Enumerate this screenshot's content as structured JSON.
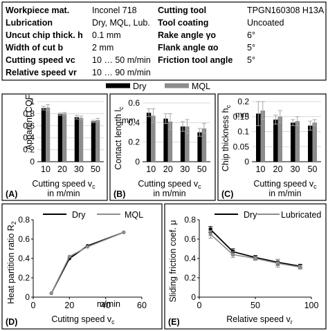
{
  "params_table": {
    "rows": [
      {
        "l1": "Workpiece mat.",
        "v1": "Inconel 718",
        "l2": "Cutting tool",
        "v2": "TPGN160308 H13A"
      },
      {
        "l1": "Lubrication",
        "v1": "Dry, MQL, Lub.",
        "l2": "Tool coating",
        "v2": "Uncoated"
      },
      {
        "l1": "Uncut chip thick. h",
        "v1": "0.1 mm",
        "l2": "Rake angle γo",
        "v2": "6°"
      },
      {
        "l1": "Width of cut b",
        "v1": "2 mm",
        "l2": "Flank angle αo",
        "v2": "5°"
      },
      {
        "l1": "Cutting speed vc",
        "v1": "10 … 50 m/min",
        "l2": "Friction tool angle",
        "v2": "5°"
      },
      {
        "l1": "Relative speed vr",
        "v1": "10 … 90 m/min",
        "l2": "",
        "v2": ""
      }
    ]
  },
  "colors": {
    "dry": "#000000",
    "mql": "#8c8c8c",
    "lubricated": "#8c8c8c",
    "frame": "#000000",
    "grid": "#d9d9d9"
  },
  "chart_data": [
    {
      "panel": "(A)",
      "type": "bar",
      "categories": [
        "10",
        "20",
        "30",
        "50"
      ],
      "series": [
        {
          "name": "Dry",
          "values": [
            0.89,
            0.79,
            0.74,
            0.67
          ],
          "errors": [
            0.03,
            0.02,
            0.03,
            0.02
          ]
        },
        {
          "name": "MQL",
          "values": [
            0.9,
            0.8,
            0.73,
            0.69
          ],
          "errors": [
            0.05,
            0.02,
            0.03,
            0.03
          ]
        }
      ],
      "ylabel": "Apparent COF",
      "xlabel": "Cutting speed vc",
      "xunit": "in m/min",
      "ylim": [
        0,
        1
      ],
      "yticks": [
        "0",
        "0.2",
        "0.4",
        "0.6",
        "0.8",
        "1"
      ],
      "legend": {
        "dry": "Dry",
        "mql": "MQL"
      }
    },
    {
      "panel": "(B)",
      "type": "bar",
      "categories": [
        "10",
        "20",
        "30",
        "50"
      ],
      "series": [
        {
          "name": "Dry",
          "values": [
            0.5,
            0.44,
            0.36,
            0.3
          ],
          "errors": [
            0.04,
            0.05,
            0.05,
            0.04
          ]
        },
        {
          "name": "MQL",
          "values": [
            0.47,
            0.41,
            0.36,
            0.34
          ],
          "errors": [
            0.07,
            0.08,
            0.07,
            0.05
          ]
        }
      ],
      "ylabel": "Contact length lc",
      "yunit": "mm",
      "xlabel": "Cutting speed vc",
      "xunit": "in m/min",
      "ylim": [
        0,
        0.6
      ],
      "yticks": [
        "0",
        "0.2",
        "0.4",
        "0.6"
      ]
    },
    {
      "panel": "(C)",
      "type": "bar",
      "categories": [
        "10",
        "20",
        "30",
        "50"
      ],
      "series": [
        {
          "name": "Dry",
          "values": [
            0.16,
            0.14,
            0.13,
            0.12
          ],
          "errors": [
            0.04,
            0.015,
            0.01,
            0.015
          ]
        },
        {
          "name": "MQL",
          "values": [
            0.17,
            0.15,
            0.135,
            0.13
          ],
          "errors": [
            0.03,
            0.02,
            0.015,
            0.01
          ]
        }
      ],
      "ylabel": "Chip thickness hc",
      "yunit": "mm",
      "xlabel": "Cutting speed vc",
      "xunit": "in m/min",
      "ylim": [
        0,
        0.2
      ],
      "yticks": [
        "0",
        "0.05",
        "0.1",
        "0.15",
        "0.2"
      ]
    },
    {
      "panel": "(D)",
      "type": "line",
      "series": [
        {
          "name": "Dry",
          "x": [
            10,
            20,
            30,
            50
          ],
          "y": [
            0.04,
            0.4,
            0.53,
            0.67
          ]
        },
        {
          "name": "MQL",
          "x": [
            10,
            20,
            30,
            50
          ],
          "y": [
            0.04,
            0.42,
            0.52,
            0.67
          ]
        }
      ],
      "ylabel": "Heat partition ratio R2",
      "xlabel": "Cutitng speed vc",
      "xunit_tick": "m/min",
      "xlim": [
        0,
        60
      ],
      "ylim": [
        0,
        0.8
      ],
      "xticks": [
        "0",
        "20",
        "40",
        "60"
      ],
      "yticks": [
        "0",
        "0.2",
        "0.4",
        "0.6",
        "0.8"
      ],
      "legend": {
        "dry": "Dry",
        "mql": "MQL"
      }
    },
    {
      "panel": "(E)",
      "type": "line",
      "series": [
        {
          "name": "Dry",
          "x": [
            10,
            30,
            50,
            70,
            90
          ],
          "y": [
            0.7,
            0.47,
            0.41,
            0.36,
            0.32
          ],
          "errors": [
            0.03,
            0.03,
            0.02,
            0.03,
            0.02
          ]
        },
        {
          "name": "Lubricated",
          "x": [
            10,
            30,
            50,
            70,
            90
          ],
          "y": [
            0.65,
            0.44,
            0.4,
            0.35,
            0.31
          ],
          "errors": [
            0.04,
            0.03,
            0.02,
            0.04,
            0.02
          ]
        }
      ],
      "ylabel": "Sliding friction coef. μ",
      "xlabel": "Relative speed vr",
      "xlim": [
        0,
        100
      ],
      "ylim": [
        0,
        0.8
      ],
      "xticks": [
        "0",
        "50",
        "100"
      ],
      "yticks": [
        "0",
        "0.2",
        "0.4",
        "0.6",
        "0.8"
      ],
      "legend": {
        "dry": "Dry",
        "lub": "Lubricated"
      }
    }
  ]
}
